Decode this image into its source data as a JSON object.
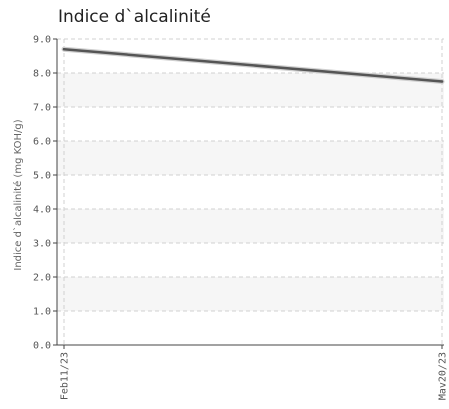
{
  "chart_data": {
    "type": "line",
    "title": "Indice d`alcalinité",
    "ylabel": "Indice d`alcalinité (mg KOH/g)",
    "xlabel": "",
    "ylim": [
      0,
      9
    ],
    "y_ticks": [
      "0.0",
      "1.0",
      "2.0",
      "3.0",
      "4.0",
      "5.0",
      "6.0",
      "7.0",
      "8.0",
      "9.0"
    ],
    "x": [
      "Feb11/23",
      "Mav20/23"
    ],
    "grid": true,
    "series": [
      {
        "values": [
          8.7,
          7.75
        ],
        "color": "#555555"
      }
    ],
    "band_color": "#f6f6f6"
  }
}
